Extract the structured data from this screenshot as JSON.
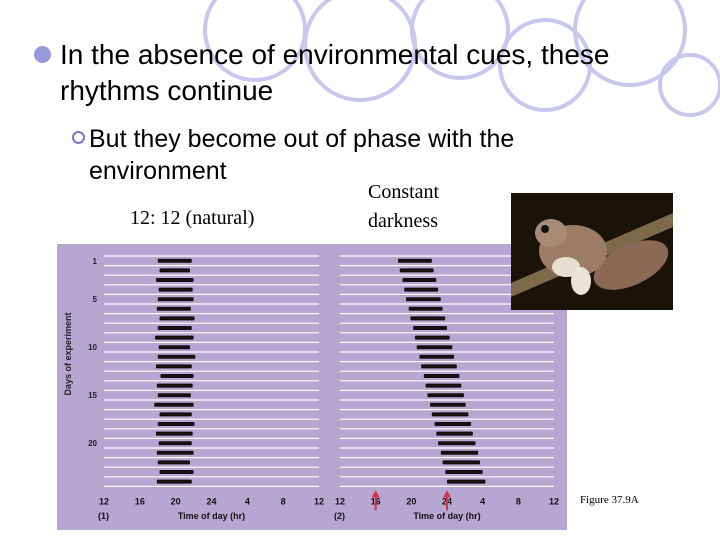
{
  "slide": {
    "bullet_main_line1": "In the absence of environmental cues, these",
    "bullet_main_line2": "rhythms continue",
    "bullet_sub_line1": "But they become out of phase with the",
    "bullet_sub_line2": "environment",
    "label_natural": "12: 12 (natural)",
    "label_dark_line1": "Constant",
    "label_dark_line2": "darkness",
    "caption": "Figure 37.9A",
    "accent_color": "#9999dd"
  },
  "figure": {
    "y_axis_label": "Days of experiment",
    "y_ticks": [
      "1",
      "5",
      "10",
      "15",
      "20"
    ],
    "x_ticks": [
      "12",
      "16",
      "20",
      "24",
      "4",
      "8",
      "12"
    ],
    "panel1": {
      "number": "(1)",
      "x_label": "Time of day (hr)"
    },
    "panel2": {
      "number": "(2)",
      "x_label": "Time of day (hr)"
    },
    "background_color": "#b6a6d2",
    "row_color": "#ffffff",
    "bar_color": "#111111",
    "arrow_color": "#d9304a",
    "arrow_ticks": [
      "16",
      "24"
    ]
  },
  "chart_data": [
    {
      "type": "actogram",
      "panel": "(1)",
      "condition": "12: 12 (natural)",
      "days": 24,
      "x_range": [
        12,
        36
      ],
      "activity_by_day": [
        [
          [
            18.0,
            21.8
          ]
        ],
        [
          [
            18.2,
            21.6
          ]
        ],
        [
          [
            17.8,
            22.0
          ]
        ],
        [
          [
            18.1,
            21.9
          ]
        ],
        [
          [
            18.0,
            22.0
          ]
        ],
        [
          [
            17.9,
            21.7
          ]
        ],
        [
          [
            18.2,
            22.1
          ]
        ],
        [
          [
            18.0,
            21.8
          ]
        ],
        [
          [
            17.7,
            22.0
          ]
        ],
        [
          [
            18.1,
            21.6
          ]
        ],
        [
          [
            18.0,
            22.2
          ]
        ],
        [
          [
            17.8,
            21.8
          ]
        ],
        [
          [
            18.3,
            22.0
          ]
        ],
        [
          [
            17.9,
            21.9
          ]
        ],
        [
          [
            18.0,
            21.7
          ]
        ],
        [
          [
            17.6,
            22.0
          ]
        ],
        [
          [
            18.2,
            21.8
          ]
        ],
        [
          [
            18.0,
            22.1
          ]
        ],
        [
          [
            17.8,
            21.9
          ]
        ],
        [
          [
            18.1,
            21.8
          ]
        ],
        [
          [
            17.9,
            22.0
          ]
        ],
        [
          [
            18.0,
            21.6
          ]
        ],
        [
          [
            18.2,
            22.0
          ]
        ],
        [
          [
            17.9,
            21.8
          ]
        ]
      ]
    },
    {
      "type": "actogram",
      "panel": "(2)",
      "condition": "Constant darkness",
      "days": 24,
      "x_range": [
        12,
        36
      ],
      "activity_by_day": [
        [
          [
            18.5,
            22.3
          ]
        ],
        [
          [
            18.7,
            22.5
          ]
        ],
        [
          [
            19.0,
            22.8
          ]
        ],
        [
          [
            19.2,
            23.0
          ]
        ],
        [
          [
            19.4,
            23.3
          ]
        ],
        [
          [
            19.7,
            23.5
          ]
        ],
        [
          [
            19.9,
            23.8
          ]
        ],
        [
          [
            20.2,
            24.0
          ]
        ],
        [
          [
            20.4,
            24.3
          ]
        ],
        [
          [
            20.6,
            24.6
          ]
        ],
        [
          [
            20.9,
            24.8
          ]
        ],
        [
          [
            21.1,
            25.1
          ]
        ],
        [
          [
            21.4,
            25.4
          ]
        ],
        [
          [
            21.6,
            25.6
          ]
        ],
        [
          [
            21.8,
            25.9
          ]
        ],
        [
          [
            22.1,
            26.1
          ]
        ],
        [
          [
            22.3,
            26.4
          ]
        ],
        [
          [
            22.6,
            26.7
          ]
        ],
        [
          [
            22.8,
            26.9
          ]
        ],
        [
          [
            23.0,
            27.2
          ]
        ],
        [
          [
            23.3,
            27.5
          ]
        ],
        [
          [
            23.5,
            27.7
          ]
        ],
        [
          [
            23.8,
            28.0
          ]
        ],
        [
          [
            24.0,
            28.3
          ]
        ]
      ]
    }
  ]
}
